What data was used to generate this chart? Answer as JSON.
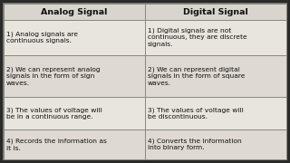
{
  "col1_header": "Analog Signal",
  "col2_header": "Digital Signal",
  "col1_rows": [
    "1) Analog signals are\ncontinuous signals.",
    "2) We can represent analog\nsignals in the form of sign\nwaves.",
    "3) The values of voltage will\nbe in a continuous range.",
    "4) Records the information as\nit is."
  ],
  "col2_rows": [
    "1) Digital signals are not\ncontinuous, they are discrete\nsignals.",
    "2) We can represent digital\nsignals in the form of square\nwaves.",
    "3) The values of voltage will\nbe discontinuous.",
    "4) Converts the information\ninto binary form."
  ],
  "header_bg": "#d8d5cf",
  "row_bg_odd": "#e8e5de",
  "row_bg_even": "#dedad3",
  "border_color": "#888880",
  "header_fontsize": 6.8,
  "cell_fontsize": 5.4,
  "header_font_weight": "bold",
  "fig_bg": "#2a2a28",
  "table_bg": "#c8c5be",
  "text_color": "#111111"
}
